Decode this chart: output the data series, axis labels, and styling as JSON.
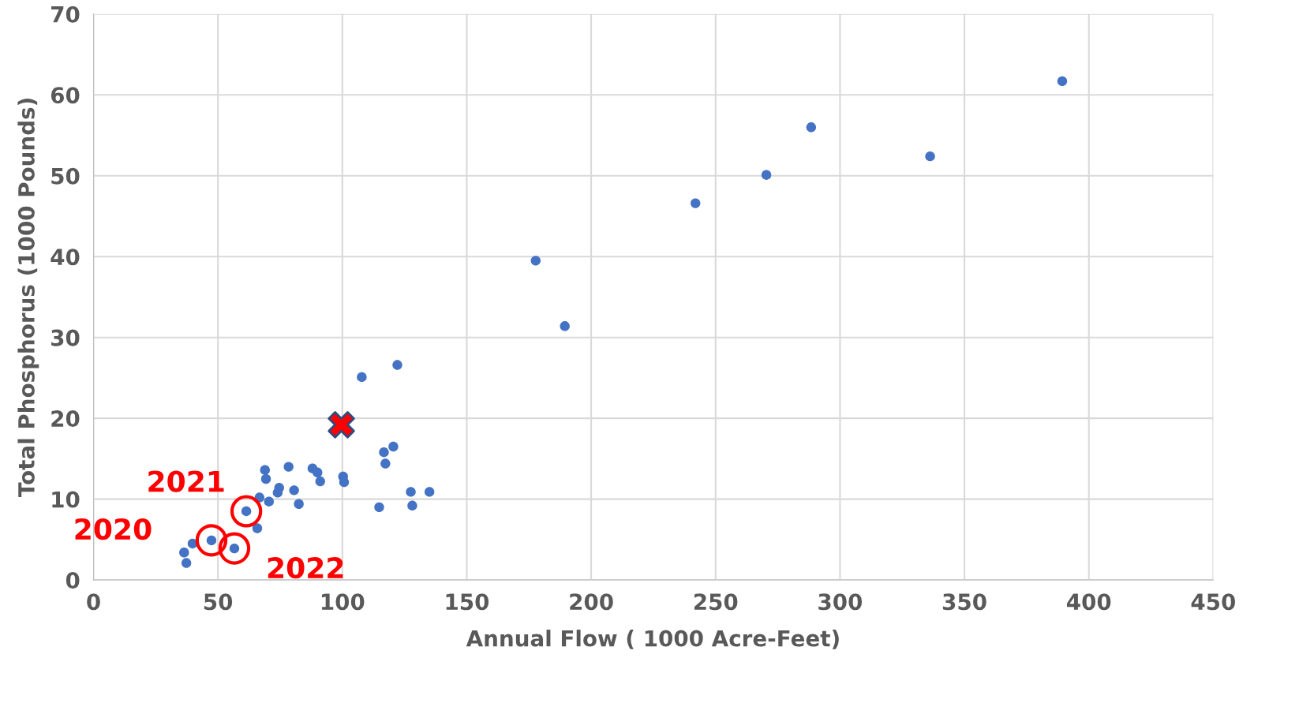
{
  "chart_data": {
    "type": "scatter",
    "xlabel": "Annual Flow ( 1000 Acre-Feet)",
    "ylabel": "Total Phosphorus (1000 Pounds)",
    "xlim": [
      0,
      450
    ],
    "xticks": [
      0,
      50,
      100,
      150,
      200,
      250,
      300,
      350,
      400,
      450
    ],
    "ylim": [
      0,
      70
    ],
    "yticks": [
      0,
      10,
      20,
      30,
      40,
      50,
      60,
      70
    ],
    "grid": true,
    "legend": false,
    "series": [
      {
        "color": "#4472c4",
        "marker": "circle",
        "x": [
          36.4,
          37.3,
          39.8,
          47.4,
          56.6,
          61.4,
          65.8,
          66.7,
          68.9,
          69.3,
          70.5,
          74.0,
          74.6,
          78.4,
          80.6,
          82.5,
          88.0,
          90.0,
          91.1,
          100.3,
          100.7,
          107.8,
          114.8,
          116.7,
          117.3,
          120.5,
          122.1,
          127.5,
          128.1,
          135.0,
          177.7,
          189.4,
          241.9,
          270.4,
          288.4,
          336.2,
          389.3
        ],
        "values": [
          3.4,
          2.1,
          4.5,
          4.9,
          3.9,
          8.5,
          6.4,
          10.2,
          13.6,
          12.5,
          9.7,
          10.8,
          11.4,
          14.0,
          11.1,
          9.4,
          13.8,
          13.3,
          12.2,
          12.8,
          12.1,
          25.1,
          9.0,
          15.8,
          14.4,
          16.5,
          26.6,
          10.9,
          9.2,
          10.9,
          39.5,
          31.4,
          46.6,
          50.1,
          56.0,
          52.4,
          61.7
        ]
      },
      {
        "color": "#ff0000",
        "marker": "cross",
        "x": [
          99.6
        ],
        "values": [
          19.2
        ]
      }
    ],
    "annotations": [
      {
        "text": "2020",
        "x": 47.4,
        "y": 4.9
      },
      {
        "text": "2021",
        "x": 61.4,
        "y": 8.5
      },
      {
        "text": "2022",
        "x": 56.6,
        "y": 3.9
      }
    ]
  }
}
